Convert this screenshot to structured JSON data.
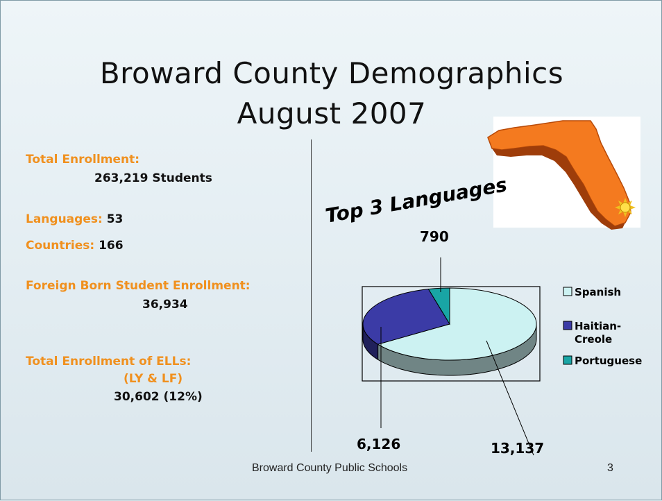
{
  "slide": {
    "title_line1": "Broward County Demographics",
    "title_line2": "August 2007",
    "footer": "Broward County Public Schools",
    "page_number": "3",
    "label_color": "#f0901e"
  },
  "stats": {
    "total_enrollment_label": "Total Enrollment:",
    "total_enrollment_value": "263,219 Students",
    "languages_label": "Languages:",
    "languages_value": "53",
    "countries_label": "Countries:",
    "countries_value": "166",
    "foreign_born_label": "Foreign Born Student Enrollment:",
    "foreign_born_value": "36,934",
    "ell_label": "Total Enrollment of ELLs:",
    "ell_sublabel": "(LY & LF)",
    "ell_value": "30,602 (12%)"
  },
  "map": {
    "icon": "florida-map-icon",
    "marker_icon": "sun-icon",
    "fill_color": "#f47a1f"
  },
  "chart_data": {
    "type": "pie",
    "title": "Top 3 Languages",
    "categories": [
      "Spanish",
      "Haitian-Creole",
      "Portuguese"
    ],
    "values": [
      13137,
      6126,
      790
    ],
    "data_labels": [
      "13,137",
      "6,126",
      "790"
    ],
    "colors": [
      "#ccf2f2",
      "#3b3ba6",
      "#19a5a5"
    ],
    "legend_position": "right",
    "three_d": true
  }
}
